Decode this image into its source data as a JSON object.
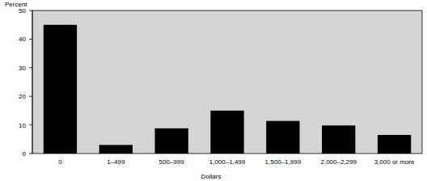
{
  "chart_data": {
    "type": "bar",
    "categories": [
      "0",
      "1–499",
      "500–999",
      "1,000–1,499",
      "1,500–1,999",
      "2,000–2,299",
      "3,000 or more"
    ],
    "values": [
      45,
      3,
      8.8,
      15,
      11.4,
      9.8,
      6.5
    ],
    "color": "#000000",
    "xlabel": "Dollars",
    "ylabel": "Percent",
    "ylim": [
      0,
      50
    ],
    "yticks": [
      0,
      10,
      20,
      30,
      40,
      50
    ],
    "grid": false
  }
}
